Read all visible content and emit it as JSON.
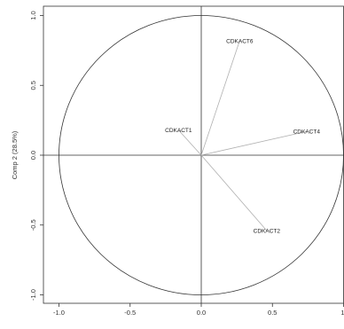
{
  "chart_data": {
    "type": "scatter",
    "subtype": "correlation-circle",
    "title": "",
    "xlabel": "",
    "ylabel": "Comp 2 (28.5%)",
    "xlim": [
      -1.05,
      1.0
    ],
    "ylim": [
      -1.05,
      1.03
    ],
    "xticks": [
      {
        "value": -1.0,
        "label": "-1.0"
      },
      {
        "value": -0.5,
        "label": "-0.5"
      },
      {
        "value": 0.0,
        "label": "0.0"
      },
      {
        "value": 0.5,
        "label": "0.5"
      },
      {
        "value": 1.0,
        "label": "1."
      }
    ],
    "yticks": [
      {
        "value": 1.0,
        "label": "1.0"
      },
      {
        "value": 0.5,
        "label": "0.5"
      },
      {
        "value": 0.0,
        "label": "0.0"
      },
      {
        "value": -0.5,
        "label": "-0.5"
      },
      {
        "value": -1.0,
        "label": "-1.0"
      }
    ],
    "circle_radius": 1.0,
    "grid": false,
    "reference_lines": {
      "x": 0,
      "y": 0
    },
    "variables": [
      {
        "name": "CDKACT6",
        "x": 0.27,
        "y": 0.82
      },
      {
        "name": "CDKACT1",
        "x": -0.16,
        "y": 0.18
      },
      {
        "name": "CDKACT4",
        "x": 0.74,
        "y": 0.17
      },
      {
        "name": "CDKACT2",
        "x": 0.46,
        "y": -0.54
      }
    ],
    "colors": {
      "frame": "#333333",
      "circle": "#333333",
      "reference_line": "#333333",
      "vector": "#b0b0b0",
      "text": "#222222"
    }
  }
}
